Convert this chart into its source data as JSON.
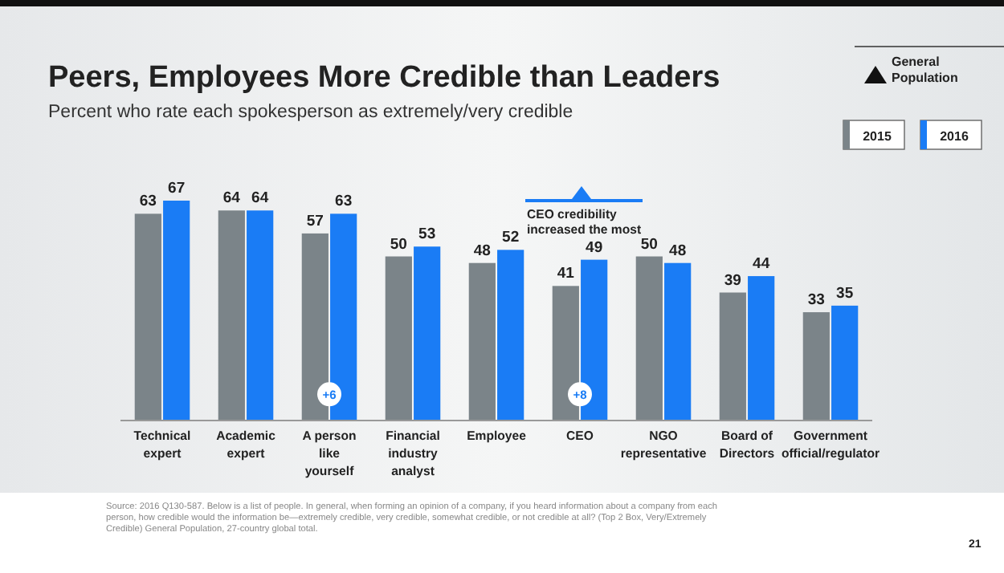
{
  "chart_data": {
    "type": "bar",
    "title": "Peers, Employees More Credible than Leaders",
    "subtitle": "Percent who rate each spokesperson as extremely/very credible",
    "categories": [
      "Technical expert",
      "Academic expert",
      "A person like yourself",
      "Financial industry analyst",
      "Employee",
      "CEO",
      "NGO representative",
      "Board of Directors",
      "Government official/regulator"
    ],
    "series": [
      {
        "name": "2015",
        "color": "#7b8489",
        "values": [
          63,
          64,
          57,
          50,
          48,
          41,
          50,
          39,
          33
        ]
      },
      {
        "name": "2016",
        "color": "#1a7cf5",
        "values": [
          67,
          64,
          63,
          53,
          52,
          49,
          48,
          44,
          35
        ]
      }
    ],
    "data_labels": true,
    "legend": "top right",
    "annotations": [
      {
        "text": "+6",
        "x": "A person like yourself",
        "y": 8
      },
      {
        "text": "+8",
        "x": "CEO",
        "y": 8
      },
      "CEO credibility increased the most",
      "General Population",
      "Source: 2016 Q130-587. Below is a list of people. In general, when forming an opinion of a company, if you heard information about a company from each person, how credible would the information be—extremely credible, very credible, somewhat credible, or not credible at all? (Top 2 Box, Very/Extremely Credible) General Population, 27-country global total.",
      "21"
    ]
  }
}
